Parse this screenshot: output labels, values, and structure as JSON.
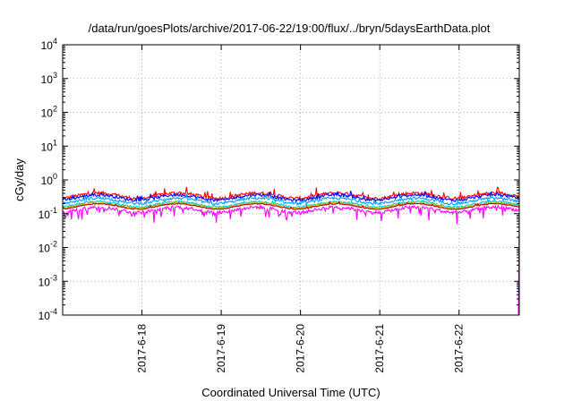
{
  "chart_data": {
    "type": "line",
    "title": "/data/run/goesPlots/archive/2017-06-22/19:00/flux/../bryn/5daysEarthData.plot",
    "xlabel": "Coordinated Universal Time (UTC)",
    "ylabel": "cGy/day",
    "yscale": "log",
    "ylim": [
      0.0001,
      10000
    ],
    "xlim": [
      0,
      5.76
    ],
    "grid": true,
    "yticks": [
      {
        "value": 0.0001,
        "base": "10",
        "exp": "-4"
      },
      {
        "value": 0.001,
        "base": "10",
        "exp": "-3"
      },
      {
        "value": 0.01,
        "base": "10",
        "exp": "-2"
      },
      {
        "value": 0.1,
        "base": "10",
        "exp": "-1"
      },
      {
        "value": 1,
        "base": "10",
        "exp": "0"
      },
      {
        "value": 10,
        "base": "10",
        "exp": "1"
      },
      {
        "value": 100,
        "base": "10",
        "exp": "2"
      },
      {
        "value": 1000,
        "base": "10",
        "exp": "3"
      },
      {
        "value": 10000,
        "base": "10",
        "exp": "4"
      }
    ],
    "xticks": [
      {
        "pos": 1,
        "label": "2017-6-18"
      },
      {
        "pos": 2,
        "label": "2017-6-19"
      },
      {
        "pos": 3,
        "label": "2017-6-20"
      },
      {
        "pos": 4,
        "label": "2017-6-21"
      },
      {
        "pos": 5,
        "label": "2017-6-22"
      }
    ],
    "series": [
      {
        "color": "#ff0000",
        "base": 0.34,
        "amp": 0.22,
        "spike": 0.1,
        "dip": 0
      },
      {
        "color": "#0000ff",
        "base": 0.3,
        "amp": 0.2,
        "spike": 0.06,
        "dip": 0
      },
      {
        "color": "#00a0ff",
        "base": 0.24,
        "amp": 0.18,
        "spike": 0.05,
        "dip": 0
      },
      {
        "color": "#00c8c8",
        "base": 0.19,
        "amp": 0.12,
        "spike": 0.03,
        "dip": 0
      },
      {
        "color": "#b8b800",
        "base": 0.175,
        "amp": 0.08,
        "spike": 0.02,
        "dip": 0
      },
      {
        "color": "#c00000",
        "base": 0.165,
        "amp": 0.06,
        "spike": 0.02,
        "dip": 0
      },
      {
        "color": "#ff00ff",
        "base": 0.13,
        "amp": 0.22,
        "spike": 0.0,
        "dip": 0.35
      }
    ],
    "colors": {
      "frame": "#000000",
      "grid": "#a0a0a0"
    }
  }
}
